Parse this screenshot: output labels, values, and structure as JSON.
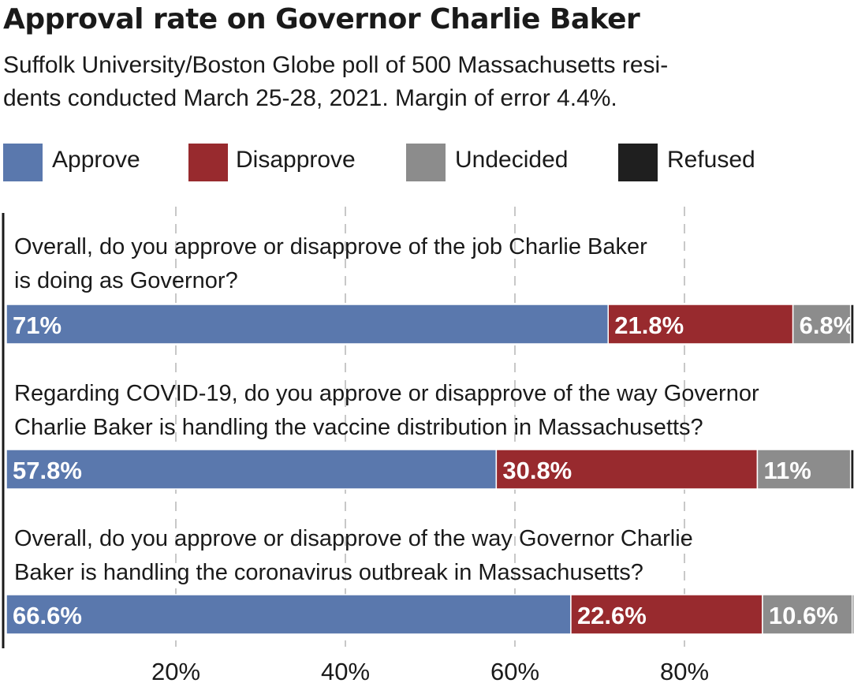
{
  "title": "Approval rate on Governor Charlie Baker",
  "subtitle_lines": [
    "Suffolk University/Boston Globe poll of 500 Massachusetts resi-",
    "dents conducted March 25-28, 2021. Margin of error 4.4%."
  ],
  "colors": {
    "Approve": "#5a78ad",
    "Disapprove": "#982a2e",
    "Undecided": "#8c8c8c",
    "Refused": "#1f1f1f",
    "grid": "#c8c8c8",
    "axis": "#1a1a1a"
  },
  "legend": [
    "Approve",
    "Disapprove",
    "Undecided",
    "Refused"
  ],
  "chart_data": {
    "type": "bar",
    "orientation": "horizontal-stacked",
    "xlim": [
      0,
      100
    ],
    "xticks": [
      20,
      40,
      60,
      80
    ],
    "xtick_labels": [
      "20%",
      "40%",
      "60%",
      "80%"
    ],
    "grid": true,
    "legend_position": "top",
    "questions": [
      {
        "label_lines": [
          "Overall, do you approve or disapprove of the job Charlie Baker",
          "is doing as Governor?"
        ],
        "segments": [
          {
            "series": "Approve",
            "value": 71,
            "label": "71%"
          },
          {
            "series": "Disapprove",
            "value": 21.8,
            "label": "21.8%"
          },
          {
            "series": "Undecided",
            "value": 6.8,
            "label": "6.8%"
          },
          {
            "series": "Refused",
            "value": 0.4,
            "label": ""
          }
        ]
      },
      {
        "label_lines": [
          "Regarding COVID-19, do you approve or disapprove of the way Governor",
          "Charlie Baker is handling the vaccine distribution in Massachusetts?"
        ],
        "segments": [
          {
            "series": "Approve",
            "value": 57.8,
            "label": "57.8%"
          },
          {
            "series": "Disapprove",
            "value": 30.8,
            "label": "30.8%"
          },
          {
            "series": "Undecided",
            "value": 11,
            "label": "11%"
          },
          {
            "series": "Refused",
            "value": 0.4,
            "label": ""
          }
        ]
      },
      {
        "label_lines": [
          "Overall, do you approve or disapprove of the way Governor Charlie",
          "Baker is handling the coronavirus outbreak in Massachusetts?"
        ],
        "segments": [
          {
            "series": "Approve",
            "value": 66.6,
            "label": "66.6%"
          },
          {
            "series": "Disapprove",
            "value": 22.6,
            "label": "22.6%"
          },
          {
            "series": "Undecided",
            "value": 10.6,
            "label": "10.6%"
          },
          {
            "series": "Refused",
            "value": 0.2,
            "label": ""
          }
        ]
      }
    ]
  }
}
